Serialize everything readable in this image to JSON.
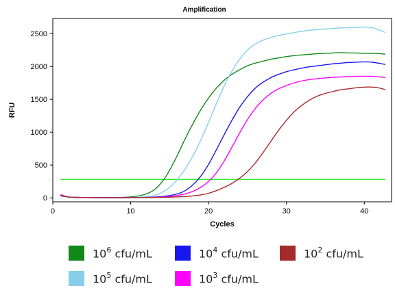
{
  "chart_data": {
    "type": "line",
    "title": "Amplification",
    "xlabel": "Cycles",
    "ylabel": "RFU",
    "xlim": [
      0,
      43.5
    ],
    "ylim": [
      -60,
      2730
    ],
    "xticks": [
      0,
      10,
      20,
      30,
      40
    ],
    "yticks": [
      0,
      500,
      1000,
      1500,
      2000,
      2500
    ],
    "grid": false,
    "legend_position": "bottom",
    "threshold": {
      "value": 280,
      "color": "#33ee33"
    },
    "x": [
      1,
      2,
      3,
      4,
      5,
      6,
      7,
      8,
      9,
      10,
      11,
      12,
      13,
      14,
      15,
      16,
      17,
      18,
      19,
      20,
      21,
      22,
      23,
      24,
      25,
      26,
      27,
      28,
      29,
      30,
      31,
      32,
      33,
      34,
      35,
      36,
      37,
      38,
      39,
      40,
      41,
      42,
      42.7
    ],
    "series": [
      {
        "name": "10^6 cfu/mL",
        "legend_base": "10",
        "legend_exp": "6",
        "legend_unit": "cfu/mL",
        "color": "#12881a",
        "values": [
          30,
          12,
          8,
          6,
          5,
          4,
          4,
          5,
          8,
          15,
          30,
          60,
          120,
          240,
          420,
          650,
          900,
          1130,
          1340,
          1520,
          1670,
          1790,
          1880,
          1950,
          2010,
          2050,
          2080,
          2110,
          2130,
          2150,
          2165,
          2175,
          2185,
          2195,
          2200,
          2205,
          2210,
          2205,
          2205,
          2200,
          2200,
          2195,
          2185
        ]
      },
      {
        "name": "10^5 cfu/mL",
        "legend_base": "10",
        "legend_exp": "5",
        "legend_unit": "cfu/mL",
        "color": "#87ceeb",
        "values": [
          40,
          12,
          8,
          6,
          5,
          4,
          3,
          3,
          4,
          5,
          8,
          15,
          35,
          80,
          160,
          280,
          440,
          640,
          880,
          1150,
          1430,
          1700,
          1930,
          2110,
          2250,
          2340,
          2400,
          2440,
          2470,
          2495,
          2515,
          2535,
          2550,
          2560,
          2570,
          2578,
          2585,
          2590,
          2595,
          2600,
          2590,
          2550,
          2515
        ]
      },
      {
        "name": "10^4 cfu/mL",
        "legend_base": "10",
        "legend_exp": "4",
        "legend_unit": "cfu/mL",
        "color": "#1818ee",
        "values": [
          45,
          15,
          8,
          5,
          4,
          3,
          2,
          2,
          3,
          4,
          5,
          8,
          12,
          20,
          35,
          60,
          110,
          200,
          330,
          510,
          730,
          960,
          1180,
          1380,
          1540,
          1670,
          1760,
          1830,
          1880,
          1920,
          1950,
          1975,
          1995,
          2010,
          2025,
          2040,
          2050,
          2060,
          2065,
          2070,
          2065,
          2045,
          2030
        ]
      },
      {
        "name": "10^3 cfu/mL",
        "legend_base": "10",
        "legend_exp": "3",
        "legend_unit": "cfu/mL",
        "color": "#ff00ff",
        "values": [
          50,
          14,
          8,
          5,
          4,
          3,
          2,
          2,
          2,
          3,
          4,
          5,
          8,
          12,
          20,
          35,
          60,
          100,
          160,
          250,
          380,
          560,
          770,
          990,
          1190,
          1360,
          1490,
          1590,
          1660,
          1710,
          1750,
          1780,
          1800,
          1815,
          1825,
          1835,
          1840,
          1845,
          1850,
          1850,
          1850,
          1840,
          1830
        ]
      },
      {
        "name": "10^2 cfu/mL",
        "legend_base": "10",
        "legend_exp": "2",
        "legend_unit": "cfu/mL",
        "color": "#a52a2a",
        "values": [
          35,
          12,
          6,
          4,
          3,
          2,
          2,
          2,
          2,
          3,
          4,
          5,
          6,
          8,
          10,
          15,
          20,
          30,
          45,
          70,
          110,
          160,
          220,
          300,
          400,
          530,
          690,
          860,
          1030,
          1180,
          1310,
          1410,
          1490,
          1550,
          1590,
          1620,
          1645,
          1660,
          1675,
          1685,
          1685,
          1670,
          1645
        ]
      }
    ]
  },
  "legend_layout_order": [
    "10^6 cfu/mL",
    "10^4 cfu/mL",
    "10^2 cfu/mL",
    "10^5 cfu/mL",
    "10^3 cfu/mL"
  ]
}
